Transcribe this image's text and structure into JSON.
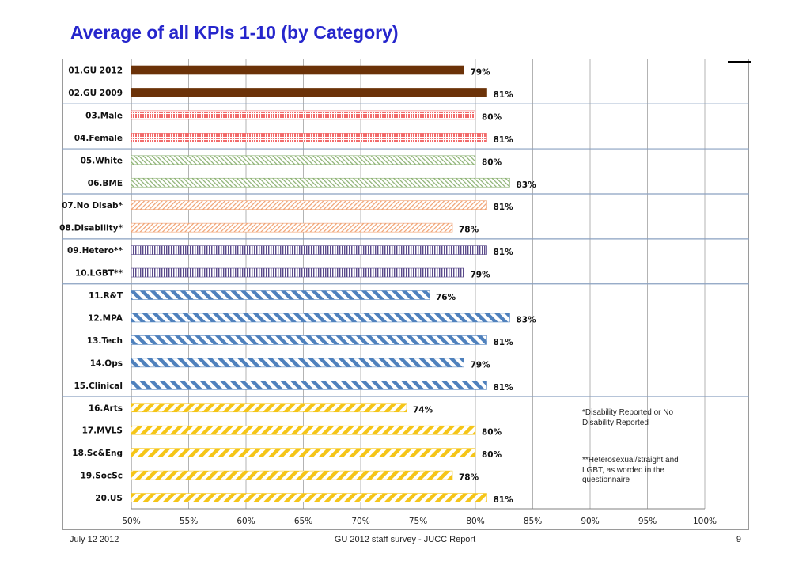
{
  "slide": {
    "title": "Average of all KPIs 1-10 (by Category)",
    "footer_date": "July 12 2012",
    "footer_center": "GU 2012 staff survey -  JUCC Report",
    "page_number": "9"
  },
  "notes": {
    "disability": "*Disability Reported or No Disability Reported",
    "hetero": "**Heterosexual/straight and LGBT, as worded in the questionnaire"
  },
  "chart_data": {
    "type": "bar",
    "orientation": "horizontal",
    "title": "Average of all KPIs 1-10 (by Category)",
    "xlim": [
      0.5,
      1.0
    ],
    "x_ticks": [
      "50%",
      "55%",
      "60%",
      "65%",
      "70%",
      "75%",
      "80%",
      "85%",
      "90%",
      "95%",
      "100%"
    ],
    "grid": true,
    "categories": [
      "01.GU 2012",
      "02.GU 2009",
      "03.Male",
      "04.Female",
      "05.White",
      "06.BME",
      "07.No Disab*",
      "08.Disability*",
      "09.Hetero**",
      "10.LGBT**",
      "11.R&T",
      "12.MPA",
      "13.Tech",
      "14.Ops",
      "15.Clinical",
      "16.Arts",
      "17.MVLS",
      "18.Sc&Eng",
      "19.SocSc",
      "20.US"
    ],
    "values": [
      0.79,
      0.81,
      0.8,
      0.81,
      0.8,
      0.83,
      0.81,
      0.78,
      0.81,
      0.79,
      0.76,
      0.83,
      0.81,
      0.79,
      0.81,
      0.74,
      0.8,
      0.8,
      0.78,
      0.81
    ],
    "value_labels": [
      "79%",
      "81%",
      "80%",
      "81%",
      "80%",
      "83%",
      "81%",
      "78%",
      "81%",
      "79%",
      "76%",
      "83%",
      "81%",
      "79%",
      "81%",
      "74%",
      "80%",
      "80%",
      "78%",
      "81%"
    ],
    "groups": [
      {
        "rows": [
          0,
          1
        ],
        "color": "#6b3208",
        "pattern": "solid"
      },
      {
        "rows": [
          2,
          3
        ],
        "color": "#f26b6b",
        "pattern": "dots"
      },
      {
        "rows": [
          4,
          5
        ],
        "color": "#8ab070",
        "pattern": "diagonal-thin"
      },
      {
        "rows": [
          6,
          7
        ],
        "color": "#f0a070",
        "pattern": "diagonal-thin"
      },
      {
        "rows": [
          8,
          9
        ],
        "color": "#5a4a8a",
        "pattern": "vertical"
      },
      {
        "rows": [
          10,
          11,
          12,
          13,
          14
        ],
        "color": "#4f81bd",
        "pattern": "diagonal-thick"
      },
      {
        "rows": [
          15,
          16,
          17,
          18,
          19
        ],
        "color": "#f5c518",
        "pattern": "diagonal-thick-forward"
      }
    ],
    "group_divider_color": "#8aa0c0"
  }
}
